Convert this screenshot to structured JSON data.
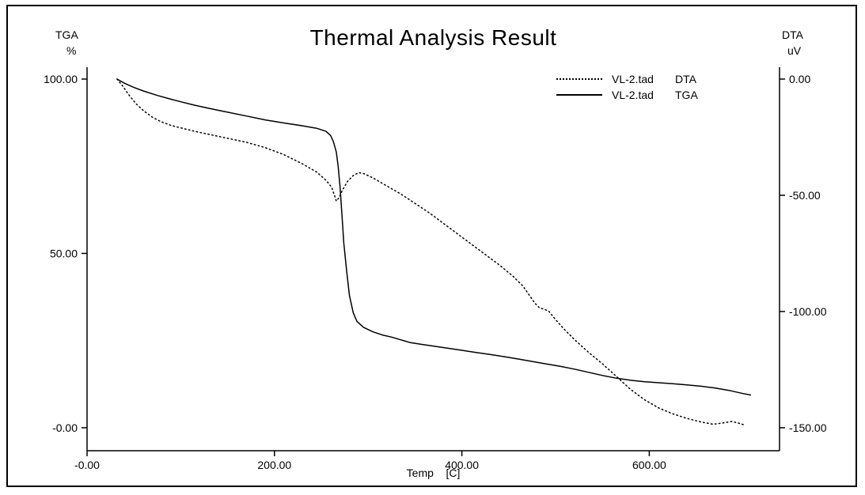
{
  "window": {
    "bg_color": "#ffffff",
    "border_color": "#000000",
    "line_color": "#000000"
  },
  "chart_data": {
    "type": "line",
    "title": "Thermal Analysis Result",
    "x_axis": {
      "label": "Temp    [C]",
      "min": 0,
      "max": 739,
      "ticks": [
        {
          "value": 0,
          "label": "-0.00"
        },
        {
          "value": 200,
          "label": "200.00"
        },
        {
          "value": 400,
          "label": "400.00"
        },
        {
          "value": 600,
          "label": "600.00"
        }
      ]
    },
    "y_left": {
      "name": "TGA",
      "unit": "%",
      "min": -6.6,
      "max": 103.4,
      "ticks": [
        {
          "value": 100,
          "label": "100.00"
        },
        {
          "value": 50,
          "label": "50.00"
        },
        {
          "value": 0,
          "label": "-0.00"
        }
      ]
    },
    "y_right": {
      "name": "DTA",
      "unit": "uV",
      "min": -159.9,
      "max": 5.1,
      "ticks": [
        {
          "value": 0,
          "label": "0.00"
        },
        {
          "value": -50,
          "label": "-50.00"
        },
        {
          "value": -100,
          "label": "-100.00"
        },
        {
          "value": -150,
          "label": "-150.00"
        }
      ]
    },
    "legend": [
      {
        "file": "VL-2.tad",
        "series": "DTA",
        "line_style": "dotted"
      },
      {
        "file": "VL-2.tad",
        "series": "TGA",
        "line_style": "solid"
      }
    ],
    "series": [
      {
        "name": "DTA",
        "axis": "right",
        "style": "dotted",
        "color": "#000000",
        "points": [
          [
            32,
            0
          ],
          [
            38,
            -3
          ],
          [
            45,
            -7
          ],
          [
            52,
            -10.5
          ],
          [
            60,
            -13.5
          ],
          [
            70,
            -16.5
          ],
          [
            80,
            -18.5
          ],
          [
            90,
            -20
          ],
          [
            100,
            -21
          ],
          [
            115,
            -22.5
          ],
          [
            130,
            -23.8
          ],
          [
            150,
            -25.5
          ],
          [
            170,
            -27.2
          ],
          [
            190,
            -29.5
          ],
          [
            210,
            -32.5
          ],
          [
            230,
            -36.5
          ],
          [
            245,
            -40
          ],
          [
            255,
            -43.5
          ],
          [
            261,
            -46.5
          ],
          [
            264,
            -50
          ],
          [
            266,
            -52.5
          ],
          [
            269,
            -51
          ],
          [
            273,
            -47.5
          ],
          [
            278,
            -44
          ],
          [
            284,
            -41.5
          ],
          [
            290,
            -40.2
          ],
          [
            296,
            -40.8
          ],
          [
            305,
            -42.5
          ],
          [
            320,
            -46
          ],
          [
            335,
            -49.5
          ],
          [
            350,
            -53.5
          ],
          [
            365,
            -57.5
          ],
          [
            380,
            -62
          ],
          [
            395,
            -66.5
          ],
          [
            410,
            -71
          ],
          [
            425,
            -75.5
          ],
          [
            440,
            -80
          ],
          [
            455,
            -85
          ],
          [
            465,
            -89
          ],
          [
            472,
            -93
          ],
          [
            478,
            -96.5
          ],
          [
            483,
            -98.5
          ],
          [
            488,
            -99
          ],
          [
            493,
            -100
          ],
          [
            500,
            -103.5
          ],
          [
            510,
            -108
          ],
          [
            520,
            -112
          ],
          [
            535,
            -117.5
          ],
          [
            550,
            -122.5
          ],
          [
            565,
            -128
          ],
          [
            580,
            -133.5
          ],
          [
            595,
            -138
          ],
          [
            610,
            -141.5
          ],
          [
            625,
            -144
          ],
          [
            640,
            -146
          ],
          [
            655,
            -147.5
          ],
          [
            668,
            -148.5
          ],
          [
            678,
            -148
          ],
          [
            688,
            -147.3
          ],
          [
            695,
            -148
          ],
          [
            703,
            -149
          ]
        ]
      },
      {
        "name": "TGA",
        "axis": "left",
        "style": "solid",
        "color": "#000000",
        "points": [
          [
            32,
            100
          ],
          [
            40,
            98.8
          ],
          [
            50,
            97.6
          ],
          [
            60,
            96.6
          ],
          [
            75,
            95.3
          ],
          [
            90,
            94.2
          ],
          [
            100,
            93.5
          ],
          [
            115,
            92.5
          ],
          [
            130,
            91.6
          ],
          [
            150,
            90.5
          ],
          [
            170,
            89.4
          ],
          [
            190,
            88.3
          ],
          [
            210,
            87.4
          ],
          [
            230,
            86.6
          ],
          [
            245,
            85.9
          ],
          [
            255,
            85.0
          ],
          [
            260,
            83.8
          ],
          [
            263,
            82
          ],
          [
            266,
            79
          ],
          [
            268,
            75
          ],
          [
            270,
            69
          ],
          [
            272,
            61
          ],
          [
            274,
            53
          ],
          [
            277,
            45
          ],
          [
            280,
            38
          ],
          [
            284,
            33
          ],
          [
            288,
            30.5
          ],
          [
            295,
            28.8
          ],
          [
            305,
            27.5
          ],
          [
            315,
            26.6
          ],
          [
            325,
            26.0
          ],
          [
            335,
            25.2
          ],
          [
            345,
            24.4
          ],
          [
            355,
            24.0
          ],
          [
            370,
            23.4
          ],
          [
            385,
            22.8
          ],
          [
            400,
            22.2
          ],
          [
            415,
            21.6
          ],
          [
            430,
            21.0
          ],
          [
            445,
            20.4
          ],
          [
            460,
            19.7
          ],
          [
            475,
            19.0
          ],
          [
            490,
            18.3
          ],
          [
            505,
            17.6
          ],
          [
            520,
            16.8
          ],
          [
            535,
            15.9
          ],
          [
            550,
            15.0
          ],
          [
            565,
            14.2
          ],
          [
            580,
            13.6
          ],
          [
            595,
            13.2
          ],
          [
            610,
            12.9
          ],
          [
            625,
            12.6
          ],
          [
            640,
            12.3
          ],
          [
            655,
            11.9
          ],
          [
            670,
            11.4
          ],
          [
            685,
            10.7
          ],
          [
            700,
            9.8
          ],
          [
            708,
            9.4
          ]
        ]
      }
    ]
  }
}
